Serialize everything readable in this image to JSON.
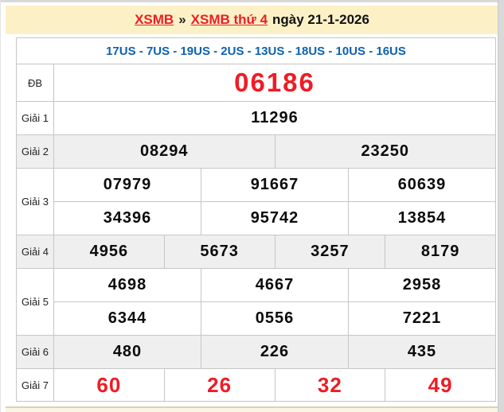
{
  "header": {
    "link_xsmb": "XSMB",
    "separator": "»",
    "link_day": "XSMB thứ 4",
    "date_text": "ngày 21-1-2026"
  },
  "loto_line": "17US - 7US - 19US - 2US - 13US - 18US - 10US - 16US",
  "results": {
    "rows": [
      {
        "label": "ĐB",
        "values": [
          "06186"
        ]
      },
      {
        "label": "Giải 1",
        "values": [
          "11296"
        ]
      },
      {
        "label": "Giải 2",
        "values": [
          "08294",
          "23250"
        ]
      },
      {
        "label": "Giải 3",
        "values": [
          "07979",
          "91667",
          "60639",
          "34396",
          "95742",
          "13854"
        ]
      },
      {
        "label": "Giải 4",
        "values": [
          "4956",
          "5673",
          "3257",
          "8179"
        ]
      },
      {
        "label": "Giải 5",
        "values": [
          "4698",
          "4667",
          "2958",
          "6344",
          "0556",
          "7221"
        ]
      },
      {
        "label": "Giải 6",
        "values": [
          "480",
          "226",
          "435"
        ]
      },
      {
        "label": "Giải 7",
        "values": [
          "60",
          "26",
          "32",
          "49"
        ]
      }
    ]
  },
  "colors": {
    "band_yellow": "#fcf1c6",
    "accent_red": "#ee1c25",
    "loto_blue": "#0e61ad",
    "stripe_gray": "#efefef",
    "border_gray": "#c6c6c6",
    "edge_gray": "#d9d9d9",
    "next_section_cream": "#fbf5e4"
  }
}
